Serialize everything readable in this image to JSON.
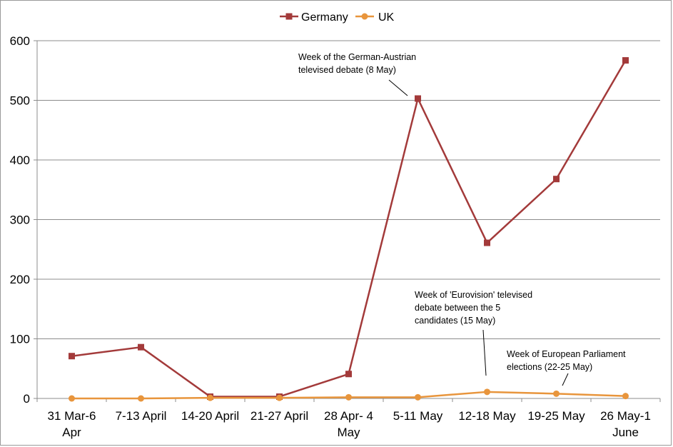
{
  "chart_data": {
    "type": "line",
    "title": "",
    "xlabel": "",
    "ylabel": "",
    "categories": [
      [
        "31 Mar-6",
        "Apr"
      ],
      [
        "7-13 April"
      ],
      [
        "14-20 April"
      ],
      [
        "21-27 April"
      ],
      [
        "28 Apr- 4",
        "May"
      ],
      [
        "5-11 May"
      ],
      [
        "12-18 May"
      ],
      [
        "19-25 May"
      ],
      [
        "26 May-1",
        "June"
      ]
    ],
    "ylim": [
      0,
      600
    ],
    "yticks": [
      0,
      100,
      200,
      300,
      400,
      500,
      600
    ],
    "grid": "horizontal",
    "legend_position": "top-center",
    "series": [
      {
        "name": "Germany",
        "color": "#a33a3a",
        "marker": "square",
        "values": [
          71,
          86,
          3,
          3,
          41,
          503,
          261,
          368,
          567
        ]
      },
      {
        "name": "UK",
        "color": "#e8953c",
        "marker": "circle",
        "values": [
          0,
          0,
          1,
          1,
          2,
          2,
          11,
          8,
          4
        ]
      }
    ],
    "annotations": [
      {
        "lines": [
          "Week of the German-Austrian",
          "televised debate (8 May)"
        ],
        "target_index": 5,
        "target_series": "Germany"
      },
      {
        "lines": [
          "Week of 'Eurovision' televised",
          "debate between the 5",
          "candidates (15 May)"
        ],
        "target_index": 6,
        "target_series": "UK"
      },
      {
        "lines": [
          "Week of European Parliament",
          "elections (22-25 May)"
        ],
        "target_index": 7,
        "target_series": "UK"
      }
    ]
  }
}
